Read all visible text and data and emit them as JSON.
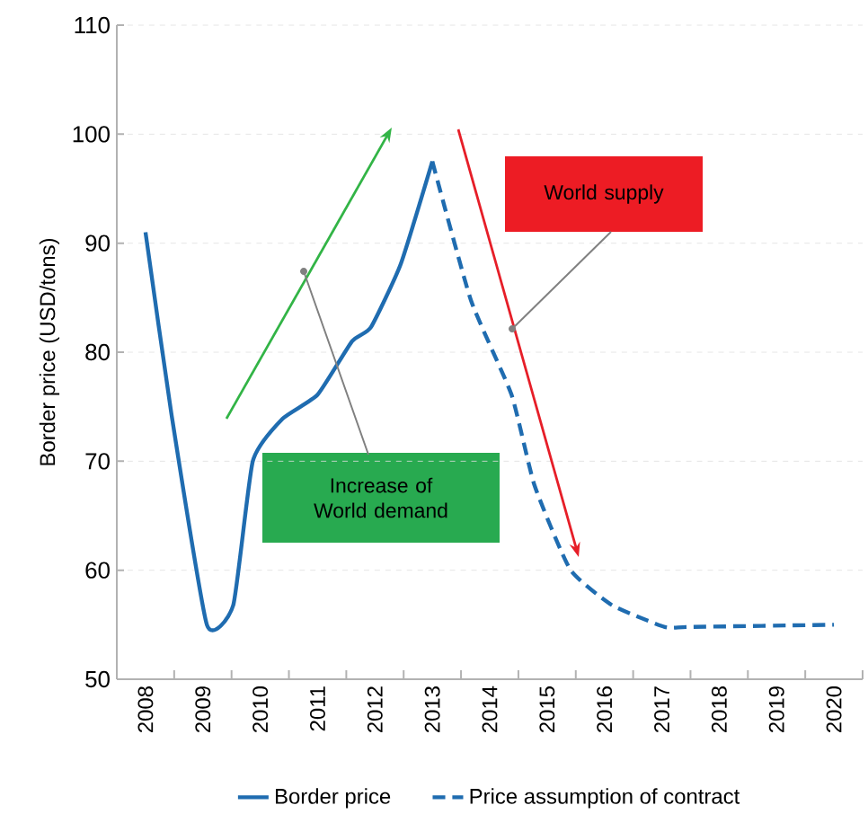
{
  "chart_data": {
    "type": "line",
    "ylabel": "Border price (USD/tons)",
    "xlim": [
      2007.5,
      2020.5
    ],
    "xticks": [
      2008,
      2009,
      2010,
      2011,
      2012,
      2013,
      2014,
      2015,
      2016,
      2017,
      2018,
      2019,
      2020
    ],
    "ylim": [
      50,
      110
    ],
    "yticks": [
      50,
      60,
      70,
      80,
      90,
      100,
      110
    ],
    "grid": "y",
    "legend": "bottom",
    "series": [
      {
        "name": "Border price",
        "color": "#1f6cb0",
        "line_style": "solid",
        "x": [
          2008,
          2008.45,
          2009.07,
          2009.53,
          2009.87,
          2010.39,
          2011.0,
          2011.6,
          2011.93,
          2012.45,
          2013
        ],
        "values": [
          91,
          74.4,
          55,
          56.8,
          70,
          73.9,
          76.1,
          81,
          82.3,
          88.1,
          97.5
        ]
      },
      {
        "name": "Price assumption of contract",
        "color": "#1f6cb0",
        "line_style": "dashed",
        "x": [
          2013,
          2013.67,
          2014.38,
          2014.78,
          2015.4,
          2016.13,
          2017.05,
          2017.5,
          2020
        ],
        "values": [
          97.5,
          84.8,
          76.1,
          67.8,
          60.1,
          56.8,
          54.8,
          54.8,
          55
        ]
      }
    ],
    "annotations": [
      "Increase of World demand",
      "World supply"
    ]
  }
}
